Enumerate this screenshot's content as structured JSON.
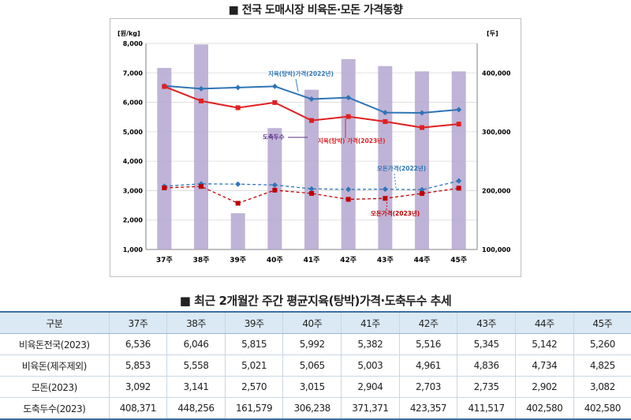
{
  "chart_title": "■ 전국 도매시장 비육돈·모돈 가격동향",
  "table_title": "■ 최근 2개월간 주간 평균지육(탕박)가격·도축두수 추세",
  "chart_data": {
    "type": "bar+line",
    "categories": [
      "37주",
      "38주",
      "39주",
      "40주",
      "41주",
      "42주",
      "43주",
      "44주",
      "45주"
    ],
    "y_left": {
      "unit": "[원/kg]",
      "min": 1000,
      "max": 8000,
      "step": 1000,
      "ticks": [
        "1,000",
        "2,000",
        "3,000",
        "4,000",
        "5,000",
        "6,000",
        "7,000",
        "8,000"
      ]
    },
    "y_right": {
      "unit": "[두]",
      "min": 100000,
      "max": 450000,
      "step": 100000,
      "ticks": [
        "100,000",
        "200,000",
        "300,000",
        "400,000"
      ]
    },
    "series": [
      {
        "name": "도축두수",
        "type": "bar",
        "axis": "right",
        "color": "#b4a7d0",
        "values": [
          408371,
          448256,
          161579,
          306238,
          371371,
          423357,
          411517,
          402580,
          402580
        ]
      },
      {
        "name": "지육(탕박)가격(2022년)",
        "type": "line",
        "axis": "left",
        "color": "#2e75b6",
        "marker": "diamond",
        "dash": false,
        "values": [
          6560,
          6460,
          6500,
          6540,
          6110,
          6160,
          5650,
          5640,
          5750
        ]
      },
      {
        "name": "지육(탕박) 가격(2023년)",
        "type": "line",
        "axis": "left",
        "color": "#e02020",
        "marker": "square",
        "dash": false,
        "values": [
          6536,
          6046,
          5815,
          5992,
          5382,
          5516,
          5345,
          5142,
          5260
        ]
      },
      {
        "name": "모돈가격(2022년)",
        "type": "line",
        "axis": "left",
        "color": "#2e75b6",
        "marker": "diamond",
        "dash": true,
        "values": [
          3150,
          3230,
          3220,
          3190,
          3060,
          3040,
          3050,
          3030,
          3330
        ]
      },
      {
        "name": "모돈가격(2023년)",
        "type": "line",
        "axis": "left",
        "color": "#c00000",
        "marker": "square",
        "dash": true,
        "values": [
          3092,
          3141,
          2570,
          3015,
          2904,
          2703,
          2735,
          2902,
          3082
        ]
      }
    ],
    "annotations": [
      {
        "text": "지육(탕박)가격(2022년)",
        "color": "#2e75b6"
      },
      {
        "text": "도축두수",
        "color": "#5b2c83"
      },
      {
        "text": "지육(탕박) 가격(2023년)",
        "color": "#e02020"
      },
      {
        "text": "모돈가격(2022년)",
        "color": "#2e75b6"
      },
      {
        "text": "모돈가격(2023년)",
        "color": "#c00000"
      }
    ]
  },
  "table": {
    "header": [
      "구분",
      "37주",
      "38주",
      "39주",
      "40주",
      "41주",
      "42주",
      "43주",
      "44주",
      "45주"
    ],
    "rows": [
      [
        "비육돈전국(2023)",
        "6,536",
        "6,046",
        "5,815",
        "5,992",
        "5,382",
        "5,516",
        "5,345",
        "5,142",
        "5,260"
      ],
      [
        "비육돈(제주제외)",
        "5,853",
        "5,558",
        "5,021",
        "5,065",
        "5,003",
        "4,961",
        "4,836",
        "4,734",
        "4,825"
      ],
      [
        "모돈(2023)",
        "3,092",
        "3,141",
        "2,570",
        "3,015",
        "2,904",
        "2,703",
        "2,735",
        "2,902",
        "3,082"
      ],
      [
        "도축두수(2023)",
        "408,371",
        "448,256",
        "161,579",
        "306,238",
        "371,371",
        "423,357",
        "411,517",
        "402,580",
        "402,580"
      ]
    ]
  }
}
